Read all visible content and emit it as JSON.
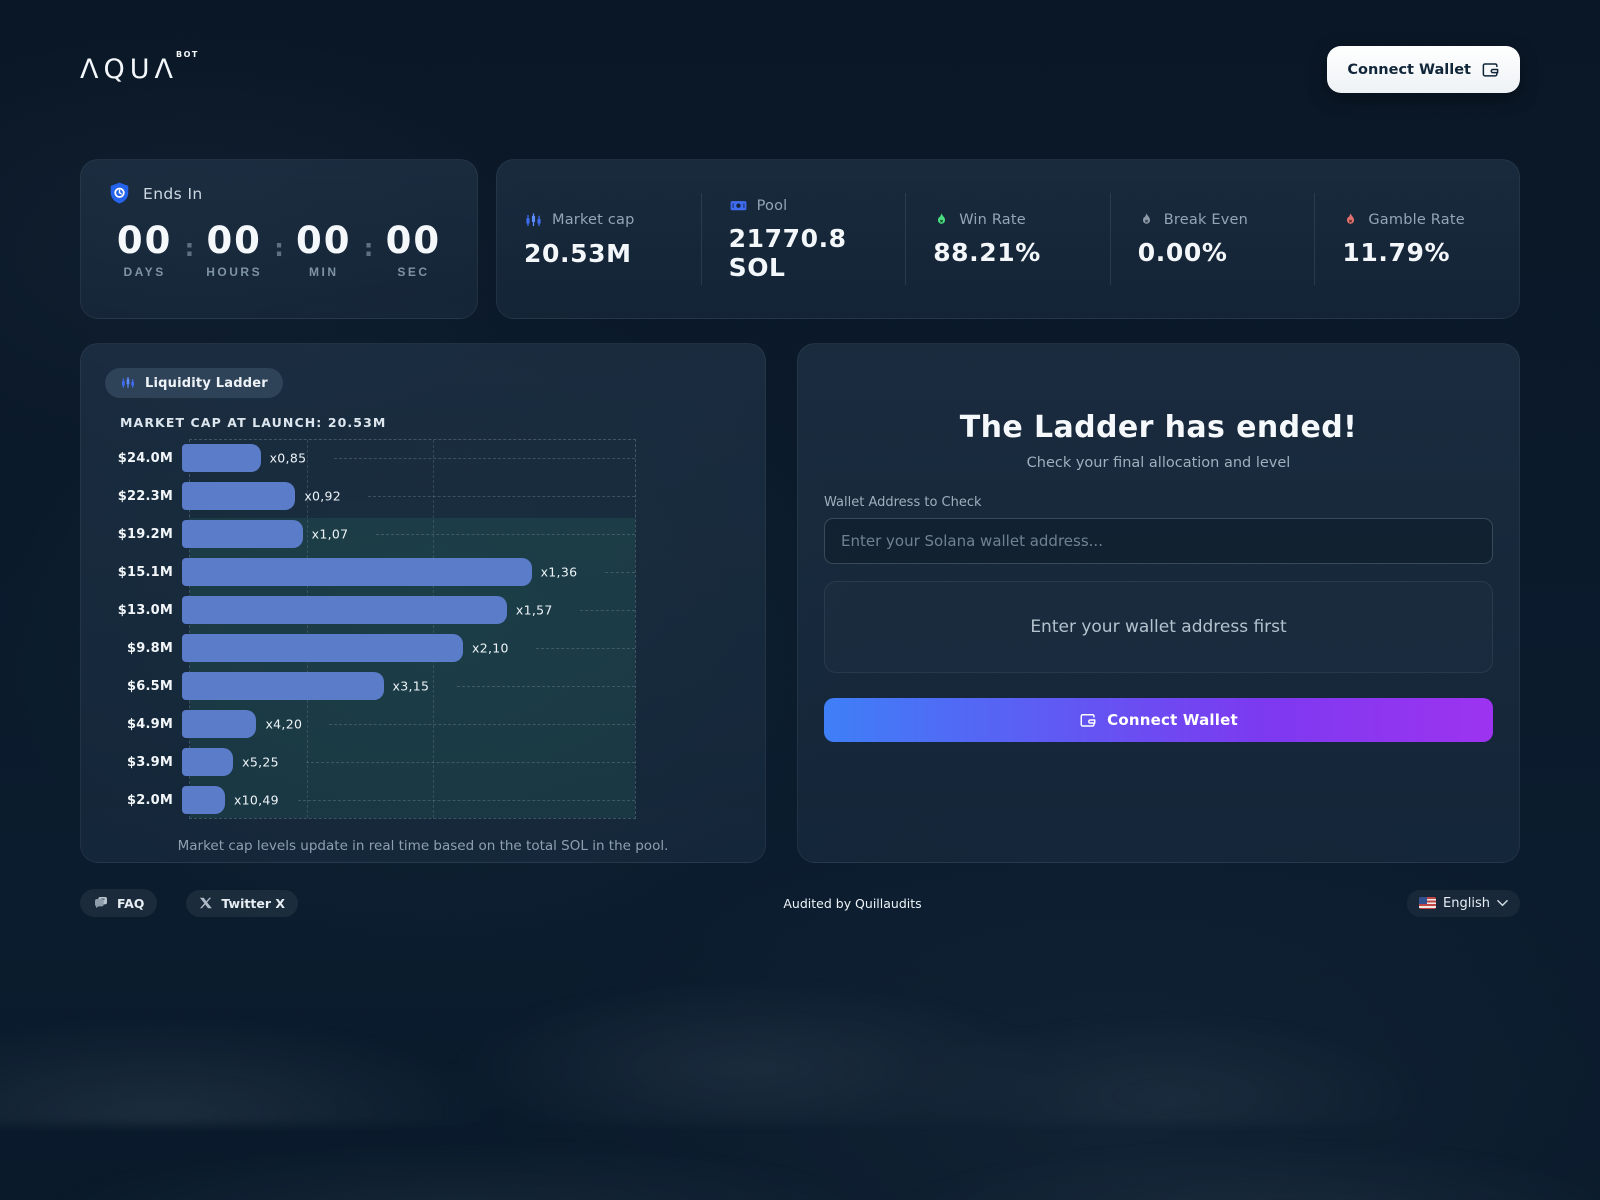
{
  "header": {
    "logo": "ΛQUΛ",
    "logo_sup": "BOT",
    "connect_wallet_label": "Connect Wallet"
  },
  "countdown": {
    "title": "Ends In",
    "separator": ":",
    "units": [
      {
        "value": "00",
        "label": "DAYS"
      },
      {
        "value": "00",
        "label": "HOURS"
      },
      {
        "value": "00",
        "label": "MIN"
      },
      {
        "value": "00",
        "label": "SEC"
      }
    ]
  },
  "stats": [
    {
      "label": "Market cap",
      "value": "20.53M",
      "icon": "candlestick-icon",
      "icon_color": "#3f6cf0"
    },
    {
      "label": "Pool",
      "value": "21770.8 SOL",
      "icon": "banknote-icon",
      "icon_color": "#3f6cf0"
    },
    {
      "label": "Win Rate",
      "value": "88.21%",
      "icon": "flame-icon",
      "icon_color": "#4ade80"
    },
    {
      "label": "Break Even",
      "value": "0.00%",
      "icon": "flame-icon",
      "icon_color": "#8b98a6"
    },
    {
      "label": "Gamble Rate",
      "value": "11.79%",
      "icon": "flame-icon",
      "icon_color": "#e0716e"
    }
  ],
  "ladder": {
    "badge_label": "Liquidity Ladder",
    "launch_label": "MARKET CAP AT LAUNCH: 20.53M",
    "caption": "Market cap levels update in real time based on the total SOL in the pool.",
    "chart_data": {
      "type": "bar",
      "orientation": "horizontal",
      "categories": [
        "$24.0M",
        "$22.3M",
        "$19.2M",
        "$15.1M",
        "$13.0M",
        "$9.8M",
        "$6.5M",
        "$4.9M",
        "$3.9M",
        "$2.0M"
      ],
      "multiplier_labels": [
        "x0,85",
        "x0,92",
        "x1,07",
        "x1,36",
        "x1,57",
        "x2,10",
        "x3,15",
        "x4,20",
        "x5,25",
        "x10,49"
      ],
      "bar_widths_pct": [
        17.2,
        24.8,
        26.4,
        76.5,
        71.1,
        61.5,
        44.1,
        16.3,
        11.2,
        9.4
      ],
      "bar_color": "#5b7dc9",
      "grid": "dashed",
      "highlight_region": {
        "from_category": "$19.2M",
        "to_category": "$2.0M",
        "color": "rgba(52,168,130,0.13)"
      }
    }
  },
  "checker": {
    "title": "The Ladder has ended!",
    "subtitle": "Check your final allocation and level",
    "input_label": "Wallet Address to Check",
    "input_placeholder": "Enter your Solana wallet address...",
    "result_placeholder": "Enter your wallet address first",
    "connect_button_label": "Connect Wallet"
  },
  "footer": {
    "faq_label": "FAQ",
    "twitter_label": "Twitter X",
    "audit_text": "Audited by Quillaudits",
    "language": "English"
  },
  "colors": {
    "accent_blue": "#3f6cf0",
    "shield_blue": "#2563eb",
    "win_green": "#4ade80",
    "break_gray": "#8b98a6",
    "gamble_red": "#e0716e",
    "bar_blue": "#5b7dc9",
    "button_gradient_start": "#3e7ff7",
    "button_gradient_end": "#9d33f0"
  }
}
